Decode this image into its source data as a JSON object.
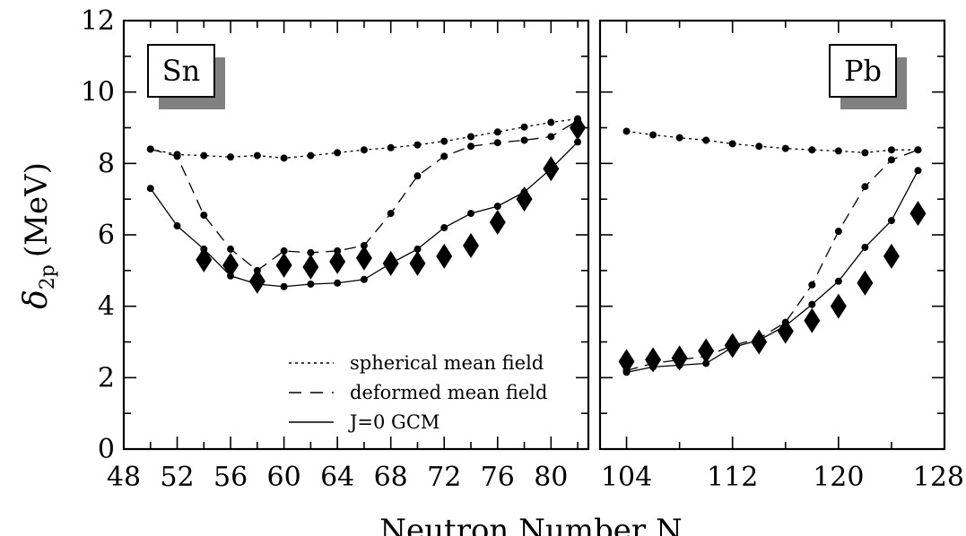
{
  "chart_data": {
    "type": "line",
    "ylabel_symbol": "δ",
    "ylabel_subscript": "2p",
    "ylabel_unit": "(MeV)",
    "xlabel": "Neutron Number N",
    "ylim": [
      0,
      12
    ],
    "yticks": [
      0,
      2,
      4,
      6,
      8,
      10,
      12
    ],
    "legend": {
      "placement": "bottom-right of left panel",
      "entries": [
        {
          "label": "spherical mean field",
          "style": "dotted"
        },
        {
          "label": "deformed mean field",
          "style": "dashed"
        },
        {
          "label": "J=0 GCM",
          "style": "solid"
        }
      ]
    },
    "panels": [
      {
        "label": "Sn",
        "xlim": [
          48,
          83
        ],
        "xticks": [
          48,
          52,
          56,
          60,
          64,
          68,
          72,
          76,
          80
        ],
        "series": [
          {
            "style": "dotted",
            "x": [
              50,
              52,
              54,
              56,
              58,
              60,
              62,
              64,
              66,
              68,
              70,
              72,
              74,
              76,
              78,
              80,
              82
            ],
            "y": [
              8.4,
              8.25,
              8.22,
              8.18,
              8.22,
              8.15,
              8.22,
              8.3,
              8.38,
              8.44,
              8.52,
              8.62,
              8.75,
              8.88,
              9.02,
              9.15,
              9.25
            ]
          },
          {
            "style": "dashed",
            "x": [
              50,
              52,
              54,
              56,
              58,
              60,
              62,
              64,
              66,
              68,
              70,
              72,
              74,
              76,
              78,
              80,
              82
            ],
            "y": [
              8.4,
              8.2,
              6.55,
              5.6,
              5.0,
              5.55,
              5.5,
              5.55,
              5.7,
              6.6,
              7.65,
              8.2,
              8.48,
              8.58,
              8.65,
              8.75,
              9.2
            ]
          },
          {
            "style": "solid",
            "x": [
              50,
              52,
              54,
              56,
              58,
              60,
              62,
              64,
              66,
              68,
              70,
              72,
              74,
              76,
              78,
              80,
              82
            ],
            "y": [
              7.3,
              6.25,
              5.6,
              4.85,
              4.62,
              4.55,
              4.62,
              4.65,
              4.75,
              5.2,
              5.6,
              6.2,
              6.6,
              6.8,
              7.2,
              7.85,
              8.6
            ]
          },
          {
            "style": "markers",
            "x": [
              54,
              56,
              58,
              60,
              62,
              64,
              66,
              68,
              70,
              72,
              74,
              76,
              78,
              80,
              82
            ],
            "y": [
              5.3,
              5.15,
              4.7,
              5.15,
              5.1,
              5.25,
              5.35,
              5.2,
              5.2,
              5.4,
              5.7,
              6.35,
              7.0,
              7.85,
              9.0
            ]
          }
        ]
      },
      {
        "label": "Pb",
        "xlim": [
          102,
          128
        ],
        "xticks": [
          104,
          112,
          120,
          128
        ],
        "series": [
          {
            "style": "dotted",
            "x": [
              104,
              106,
              108,
              110,
              112,
              114,
              116,
              118,
              120,
              122,
              124,
              126
            ],
            "y": [
              8.9,
              8.8,
              8.72,
              8.65,
              8.55,
              8.48,
              8.42,
              8.38,
              8.35,
              8.3,
              8.38,
              8.38
            ]
          },
          {
            "style": "dashed",
            "x": [
              104,
              106,
              108,
              110,
              112,
              114,
              116,
              118,
              120,
              122,
              124,
              126
            ],
            "y": [
              2.2,
              2.4,
              2.5,
              2.6,
              2.9,
              3.1,
              3.55,
              4.6,
              6.1,
              7.35,
              8.1,
              8.38
            ]
          },
          {
            "style": "solid",
            "x": [
              104,
              106,
              108,
              110,
              112,
              114,
              116,
              118,
              120,
              122,
              124,
              126
            ],
            "y": [
              2.15,
              2.3,
              2.35,
              2.4,
              2.85,
              3.05,
              3.45,
              4.05,
              4.7,
              5.65,
              6.4,
              7.8
            ]
          },
          {
            "style": "markers",
            "x": [
              104,
              106,
              108,
              110,
              112,
              114,
              116,
              118,
              120,
              122,
              124,
              126
            ],
            "y": [
              2.45,
              2.5,
              2.55,
              2.75,
              2.9,
              3.0,
              3.3,
              3.6,
              4.0,
              4.65,
              5.4,
              6.6
            ]
          }
        ]
      }
    ]
  }
}
